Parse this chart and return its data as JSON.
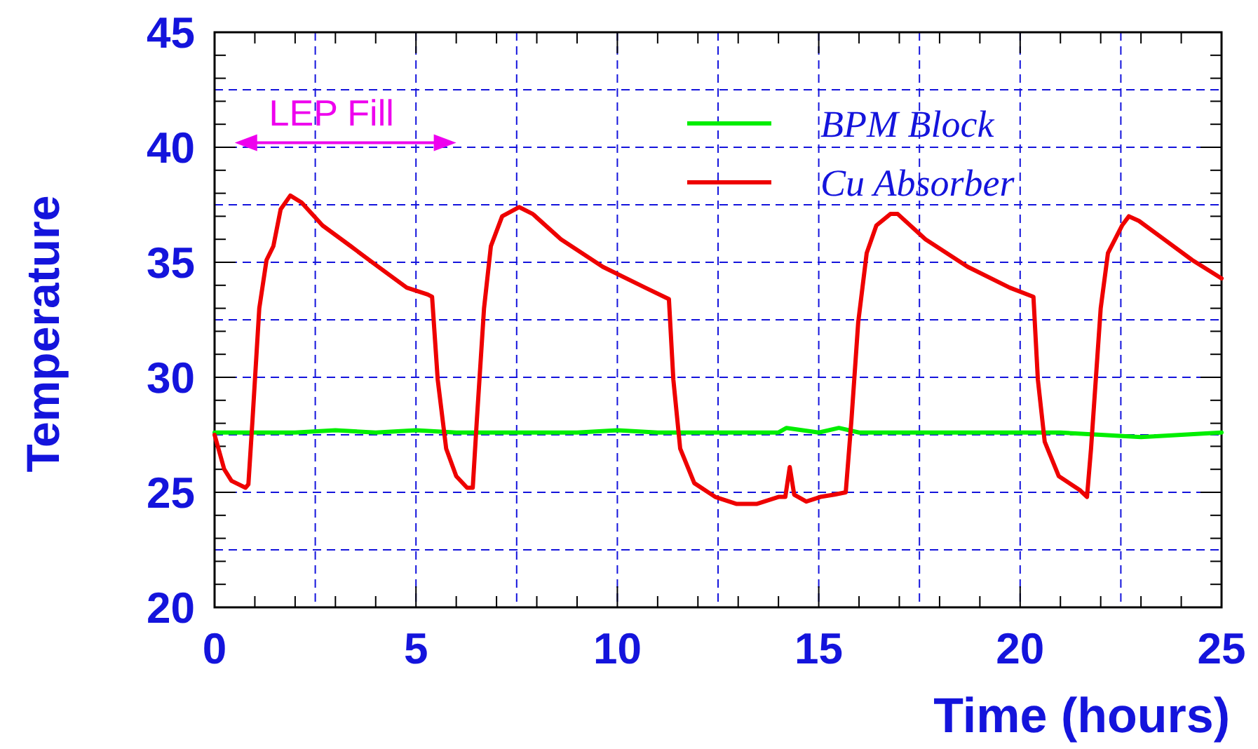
{
  "chart_data": {
    "type": "line",
    "xlabel": "Time (hours)",
    "ylabel": "Temperature",
    "xlim": [
      0,
      25
    ],
    "ylim": [
      20,
      45
    ],
    "xticks": [
      0,
      5,
      10,
      15,
      20,
      25
    ],
    "yticks": [
      20,
      25,
      30,
      35,
      40,
      45
    ],
    "grid": true,
    "legend": "top right",
    "annotations": [
      "LEP Fill"
    ],
    "series": [
      {
        "name": "BPM Block",
        "color": "#00ee00",
        "x": [
          0,
          1,
          2,
          3,
          4,
          5,
          6,
          7,
          8,
          9,
          10,
          11,
          12,
          13,
          14,
          14.2,
          15,
          15.5,
          16,
          17,
          18,
          19,
          20,
          21,
          22,
          23,
          24,
          25
        ],
        "values": [
          27.6,
          27.6,
          27.6,
          27.7,
          27.6,
          27.7,
          27.6,
          27.6,
          27.6,
          27.6,
          27.7,
          27.6,
          27.6,
          27.6,
          27.6,
          27.8,
          27.6,
          27.8,
          27.6,
          27.6,
          27.6,
          27.6,
          27.6,
          27.6,
          27.5,
          27.4,
          27.5,
          27.6
        ]
      },
      {
        "name": "Cu Absorber",
        "color": "#ee0000",
        "x": [
          0,
          0.24,
          0.42,
          0.77,
          0.84,
          0.94,
          1.11,
          1.29,
          1.46,
          1.64,
          1.88,
          2.16,
          2.68,
          3.38,
          4.07,
          4.77,
          5.29,
          5.4,
          5.54,
          5.75,
          6.0,
          6.27,
          6.41,
          6.51,
          6.69,
          6.86,
          7.14,
          7.56,
          7.9,
          8.6,
          9.64,
          10.69,
          11.28,
          11.39,
          11.56,
          11.91,
          12.43,
          12.95,
          13.47,
          14.0,
          14.17,
          14.28,
          14.39,
          14.69,
          15.04,
          15.39,
          15.67,
          15.81,
          15.98,
          16.19,
          16.43,
          16.78,
          16.96,
          17.65,
          18.7,
          19.74,
          20.33,
          20.44,
          20.61,
          20.96,
          21.48,
          21.66,
          21.76,
          22.0,
          22.18,
          22.53,
          22.7,
          22.95,
          23.57,
          24.27,
          25.0
        ],
        "values": [
          27.5,
          26.0,
          25.5,
          25.2,
          25.35,
          28.1,
          33.0,
          35.1,
          35.7,
          37.3,
          37.9,
          37.6,
          36.6,
          35.7,
          34.8,
          33.9,
          33.6,
          33.5,
          29.9,
          26.9,
          25.7,
          25.2,
          25.2,
          28.1,
          33.0,
          35.7,
          37.0,
          37.4,
          37.1,
          36.0,
          34.8,
          33.9,
          33.4,
          29.9,
          26.9,
          25.4,
          24.8,
          24.5,
          24.5,
          24.8,
          24.8,
          26.1,
          24.9,
          24.6,
          24.8,
          24.9,
          25.0,
          28.1,
          32.4,
          35.4,
          36.6,
          37.1,
          37.1,
          36.0,
          34.8,
          33.9,
          33.5,
          29.9,
          27.2,
          25.7,
          25.1,
          24.8,
          26.9,
          33.0,
          35.4,
          36.6,
          37.0,
          36.8,
          36.0,
          35.1,
          34.3
        ]
      }
    ]
  }
}
